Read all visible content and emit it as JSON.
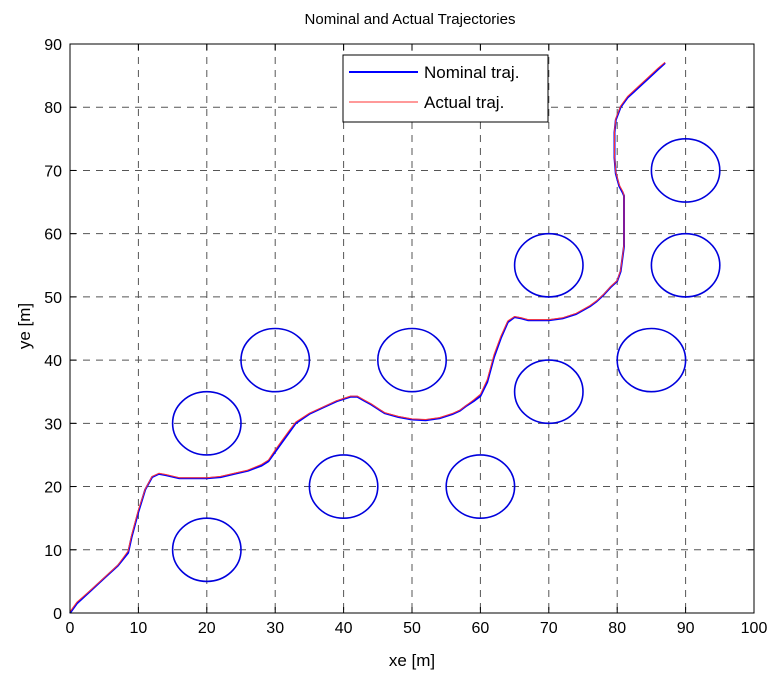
{
  "chart_data": {
    "type": "line",
    "title": "Nominal and Actual Trajectories",
    "xlabel": "xe [m]",
    "ylabel": "ye [m]",
    "xlim": [
      0,
      100
    ],
    "ylim": [
      0,
      90
    ],
    "xticks": [
      0,
      10,
      20,
      30,
      40,
      50,
      60,
      70,
      80,
      90,
      100
    ],
    "yticks": [
      0,
      10,
      20,
      30,
      40,
      50,
      60,
      70,
      80,
      90
    ],
    "grid": true,
    "legend_position": "top-center",
    "series": [
      {
        "name": "Nominal traj.",
        "color": "#0000ff",
        "x": [
          0,
          1,
          3,
          5,
          7,
          8.5,
          9,
          10,
          11,
          12,
          13,
          14,
          16,
          18,
          20,
          22,
          24,
          26,
          28,
          29,
          30,
          31,
          32,
          33,
          35,
          37,
          39,
          41,
          42,
          43,
          44,
          45,
          46,
          48,
          50,
          52,
          54,
          56,
          57,
          58,
          59,
          60,
          61,
          62,
          63,
          64,
          65,
          66,
          67,
          68,
          70,
          72,
          74,
          76,
          77,
          78,
          79,
          80,
          80.5,
          81,
          81,
          81,
          81,
          80.8,
          80.3,
          79.8,
          79.6,
          79.6,
          79.8,
          80.5,
          81.5,
          83,
          84.5,
          86,
          87
        ],
        "y": [
          0,
          1.5,
          3.5,
          5.5,
          7.5,
          9.5,
          12,
          16,
          19.5,
          21.5,
          22,
          21.8,
          21.3,
          21.3,
          21.3,
          21.5,
          22,
          22.5,
          23.3,
          24,
          25.5,
          27,
          28.5,
          30,
          31.5,
          32.5,
          33.5,
          34.2,
          34.2,
          33.6,
          33,
          32.3,
          31.6,
          31,
          30.6,
          30.5,
          30.8,
          31.5,
          32,
          32.8,
          33.5,
          34.3,
          36.5,
          40.5,
          43.5,
          46,
          46.8,
          46.6,
          46.3,
          46.3,
          46.3,
          46.6,
          47.3,
          48.5,
          49.3,
          50.3,
          51.5,
          52.5,
          54,
          58,
          62,
          65,
          66,
          66.5,
          67.5,
          69.5,
          72,
          76,
          78,
          80,
          81.5,
          83,
          84.5,
          86,
          87
        ]
      },
      {
        "name": "Actual traj.",
        "color": "#ff3333",
        "x": [
          0,
          1,
          3,
          5,
          7,
          8.5,
          9,
          10,
          11,
          12,
          13,
          14,
          16,
          18,
          20,
          22,
          24,
          26,
          28,
          29,
          30,
          31,
          32,
          33,
          35,
          37,
          39,
          41,
          42,
          43,
          44,
          45,
          46,
          48,
          50,
          52,
          54,
          56,
          57,
          58,
          59,
          60,
          61,
          62,
          63,
          64,
          65,
          66,
          67,
          68,
          70,
          72,
          74,
          76,
          77,
          78,
          79,
          80,
          80.5,
          81,
          81,
          81,
          81,
          80.8,
          80.3,
          79.8,
          79.6,
          79.6,
          79.8,
          80.5,
          81.5,
          83,
          84.5,
          86,
          87
        ],
        "y": [
          0.2,
          1.7,
          3.6,
          5.6,
          7.6,
          9.8,
          12.3,
          16.3,
          19.6,
          21.6,
          22.1,
          21.9,
          21.4,
          21.4,
          21.4,
          21.6,
          22.1,
          22.6,
          23.5,
          24.2,
          25.8,
          27.3,
          28.8,
          30.2,
          31.6,
          32.6,
          33.6,
          34.3,
          34.3,
          33.7,
          33.1,
          32.4,
          31.7,
          31.1,
          30.7,
          30.6,
          30.9,
          31.6,
          32.1,
          32.9,
          33.7,
          34.6,
          36.9,
          40.9,
          43.8,
          46.2,
          46.9,
          46.7,
          46.4,
          46.4,
          46.4,
          46.7,
          47.4,
          48.6,
          49.4,
          50.4,
          51.6,
          52.6,
          54.2,
          58.2,
          62.2,
          65.1,
          66.1,
          66.7,
          67.7,
          69.7,
          72.2,
          76.2,
          78.2,
          80.2,
          81.7,
          83.2,
          84.7,
          86.2,
          87.1
        ]
      }
    ],
    "circles": {
      "radius": 5,
      "color": "#0000dd",
      "centers": [
        [
          20,
          10
        ],
        [
          20,
          30
        ],
        [
          30,
          40
        ],
        [
          40,
          20
        ],
        [
          50,
          40
        ],
        [
          60,
          20
        ],
        [
          70,
          35
        ],
        [
          70,
          55
        ],
        [
          85,
          40
        ],
        [
          90,
          55
        ],
        [
          90,
          70
        ]
      ]
    }
  }
}
